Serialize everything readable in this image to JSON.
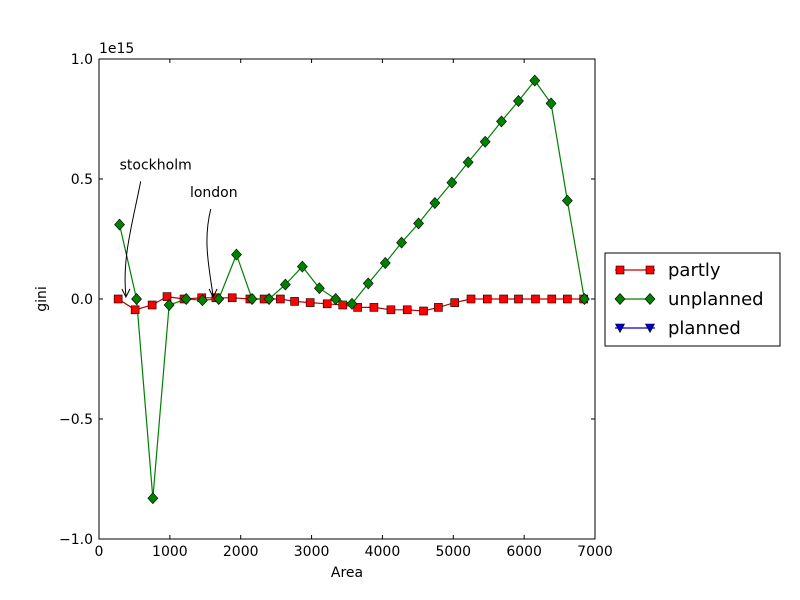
{
  "chart_data": {
    "type": "line",
    "title": "",
    "xlabel": "Area",
    "ylabel": "gini",
    "y_offset_label": "1e15",
    "xlim": [
      0,
      7000
    ],
    "ylim": [
      -1.0,
      1.0
    ],
    "x_ticks": [
      0,
      1000,
      2000,
      3000,
      4000,
      5000,
      6000,
      7000
    ],
    "x_tick_labels": [
      "0",
      "1000",
      "2000",
      "3000",
      "4000",
      "5000",
      "6000",
      "7000"
    ],
    "y_ticks": [
      -1.0,
      -0.5,
      0.0,
      0.5,
      1.0
    ],
    "y_tick_labels": [
      "−1.0",
      "−0.5",
      "0.0",
      "0.5",
      "1.0"
    ],
    "grid": false,
    "legend_position": "outside-right",
    "series": [
      {
        "name": "partly",
        "color": "#ff0000",
        "line_color": "#c00000",
        "marker": "square",
        "x": [
          270,
          510,
          750,
          960,
          1200,
          1450,
          1650,
          1880,
          2130,
          2330,
          2560,
          2760,
          2980,
          3220,
          3440,
          3650,
          3880,
          4120,
          4350,
          4580,
          4790,
          5020,
          5250,
          5480,
          5710,
          5920,
          6160,
          6390,
          6610,
          6840
        ],
        "y": [
          0.0,
          -0.045,
          -0.025,
          0.01,
          0.0,
          0.005,
          0.005,
          0.005,
          0.0,
          0.0,
          0.0,
          -0.01,
          -0.015,
          -0.02,
          -0.025,
          -0.035,
          -0.035,
          -0.045,
          -0.045,
          -0.05,
          -0.035,
          -0.015,
          0.0,
          0.0,
          0.0,
          0.0,
          0.0,
          0.0,
          0.0,
          0.0
        ]
      },
      {
        "name": "unplanned",
        "color": "#008000",
        "line_color": "#008000",
        "marker": "diamond",
        "x": [
          290,
          530,
          760,
          990,
          1230,
          1460,
          1690,
          1940,
          2160,
          2400,
          2630,
          2870,
          3110,
          3340,
          3570,
          3800,
          4040,
          4270,
          4510,
          4740,
          4980,
          5210,
          5450,
          5680,
          5920,
          6150,
          6380,
          6610,
          6850
        ],
        "y": [
          0.31,
          0.0,
          -0.83,
          -0.025,
          0.0,
          -0.005,
          0.0,
          0.185,
          0.0,
          0.0,
          0.06,
          0.135,
          0.045,
          0.0,
          -0.02,
          0.065,
          0.15,
          0.235,
          0.315,
          0.4,
          0.485,
          0.57,
          0.655,
          0.74,
          0.825,
          0.91,
          0.815,
          0.41,
          0.0
        ]
      },
      {
        "name": "planned",
        "color": "#0000cc",
        "line_color": "#0000cc",
        "marker": "triangle-down",
        "x": [],
        "y": []
      }
    ],
    "annotations": [
      {
        "text": "stockholm",
        "text_x": 800,
        "text_y": 0.54,
        "point_x": 380,
        "point_y": 0.0
      },
      {
        "text": "london",
        "text_x": 1620,
        "text_y": 0.425,
        "point_x": 1610,
        "point_y": 0.0
      }
    ]
  }
}
